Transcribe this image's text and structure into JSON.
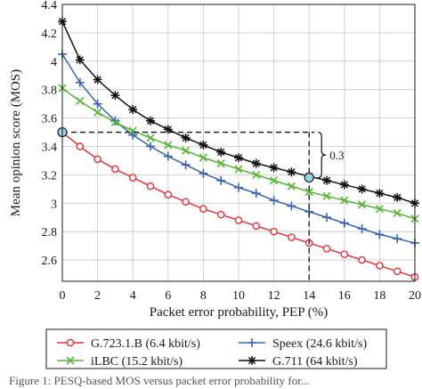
{
  "chart_data": {
    "type": "line",
    "title": "",
    "xlabel": "Packet error probability, PEP (%)",
    "ylabel": "Mean opinion score (MOS)",
    "xlim": [
      0,
      20
    ],
    "ylim": [
      2.45,
      4.4
    ],
    "xticks": [
      "0",
      "2",
      "4",
      "6",
      "8",
      "10",
      "12",
      "14",
      "16",
      "18",
      "20"
    ],
    "yticks": [
      "2.6",
      "2.8",
      "3",
      "3.2",
      "3.4",
      "3.6",
      "3.8",
      "4",
      "4.2",
      "4.4"
    ],
    "grid": true,
    "legend_position": "bottom",
    "x": [
      0,
      1,
      2,
      3,
      4,
      5,
      6,
      7,
      8,
      9,
      10,
      11,
      12,
      13,
      14,
      15,
      16,
      17,
      18,
      19,
      20
    ],
    "series": [
      {
        "name": "G.723.1.B (6.4 kbit/s)",
        "color": "#e8303a",
        "marker": "circle",
        "values": [
          3.5,
          3.4,
          3.31,
          3.24,
          3.18,
          3.12,
          3.06,
          3.01,
          2.96,
          2.92,
          2.88,
          2.84,
          2.8,
          2.76,
          2.72,
          2.68,
          2.64,
          2.6,
          2.56,
          2.52,
          2.48
        ]
      },
      {
        "name": "Speex (24.6 kbit/s)",
        "color": "#3a63b4",
        "marker": "plus",
        "values": [
          4.05,
          3.85,
          3.7,
          3.58,
          3.48,
          3.4,
          3.33,
          3.27,
          3.21,
          3.16,
          3.11,
          3.07,
          3.02,
          2.98,
          2.94,
          2.9,
          2.86,
          2.82,
          2.78,
          2.75,
          2.72
        ]
      },
      {
        "name": "iLBC (15.2 kbit/s)",
        "color": "#55b534",
        "marker": "cross",
        "values": [
          3.81,
          3.72,
          3.64,
          3.57,
          3.51,
          3.46,
          3.41,
          3.37,
          3.32,
          3.28,
          3.24,
          3.2,
          3.16,
          3.12,
          3.08,
          3.05,
          3.02,
          2.99,
          2.96,
          2.93,
          2.89
        ]
      },
      {
        "name": "G.711 (64 kbit/s)",
        "color": "#111111",
        "marker": "star",
        "values": [
          4.28,
          4.01,
          3.87,
          3.76,
          3.66,
          3.58,
          3.52,
          3.46,
          3.41,
          3.36,
          3.32,
          3.28,
          3.25,
          3.22,
          3.19,
          3.16,
          3.13,
          3.1,
          3.07,
          3.04,
          3.0
        ]
      }
    ],
    "annotation": {
      "label": "0.3",
      "ref_point": [
        0,
        3.5
      ],
      "target_point": [
        14,
        3.18
      ],
      "bracket_top": 3.5,
      "bracket_bottom": 3.18
    }
  },
  "caption": "Figure 1: PESQ-based MOS versus packet error probability for..."
}
